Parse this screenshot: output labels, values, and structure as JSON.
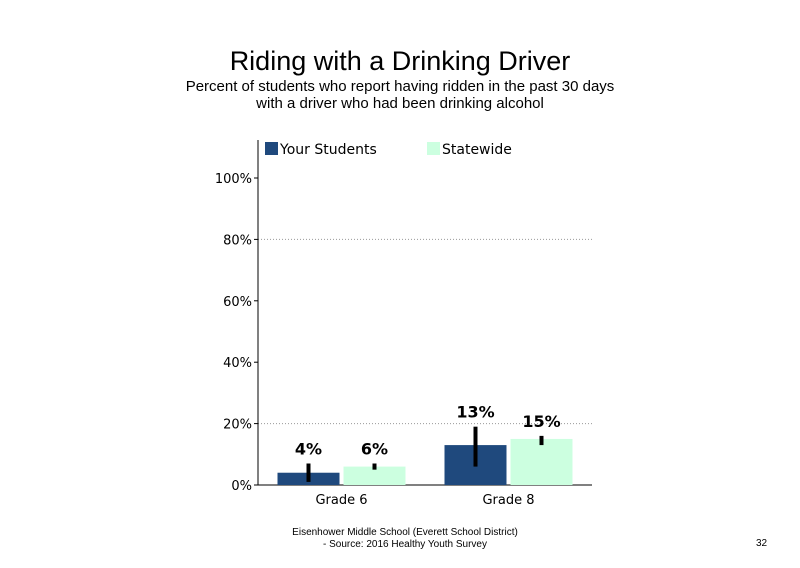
{
  "chart_data": {
    "type": "bar",
    "title": "Riding with a Drinking Driver",
    "subtitle_line1": "Percent of students who report having ridden in the past 30 days",
    "subtitle_line2": "with a driver who had been drinking alcohol",
    "categories": [
      "Grade 6",
      "Grade 8"
    ],
    "series": [
      {
        "name": "Your Students",
        "color": "#1f497d",
        "values": [
          4,
          13
        ],
        "error_low": [
          1,
          6
        ],
        "error_high": [
          7,
          19
        ]
      },
      {
        "name": "Statewide",
        "color": "#ccffe0",
        "values": [
          6,
          15
        ],
        "error_low": [
          5,
          13
        ],
        "error_high": [
          7,
          16
        ]
      }
    ],
    "data_labels": [
      [
        "4%",
        "13%"
      ],
      [
        "6%",
        "15%"
      ]
    ],
    "ylim": [
      0,
      100
    ],
    "yticks": [
      0,
      20,
      40,
      60,
      80,
      100
    ],
    "ytick_labels": [
      "0%",
      "20%",
      "40%",
      "60%",
      "80%",
      "100%"
    ],
    "grid": "horizontal dotted at 20%, 80%",
    "legend_position": "top"
  },
  "footer": {
    "line1": "Eisenhower Middle School (Everett School District)",
    "line2": "- Source: 2016 Healthy  Youth Survey"
  },
  "page_number": "32"
}
